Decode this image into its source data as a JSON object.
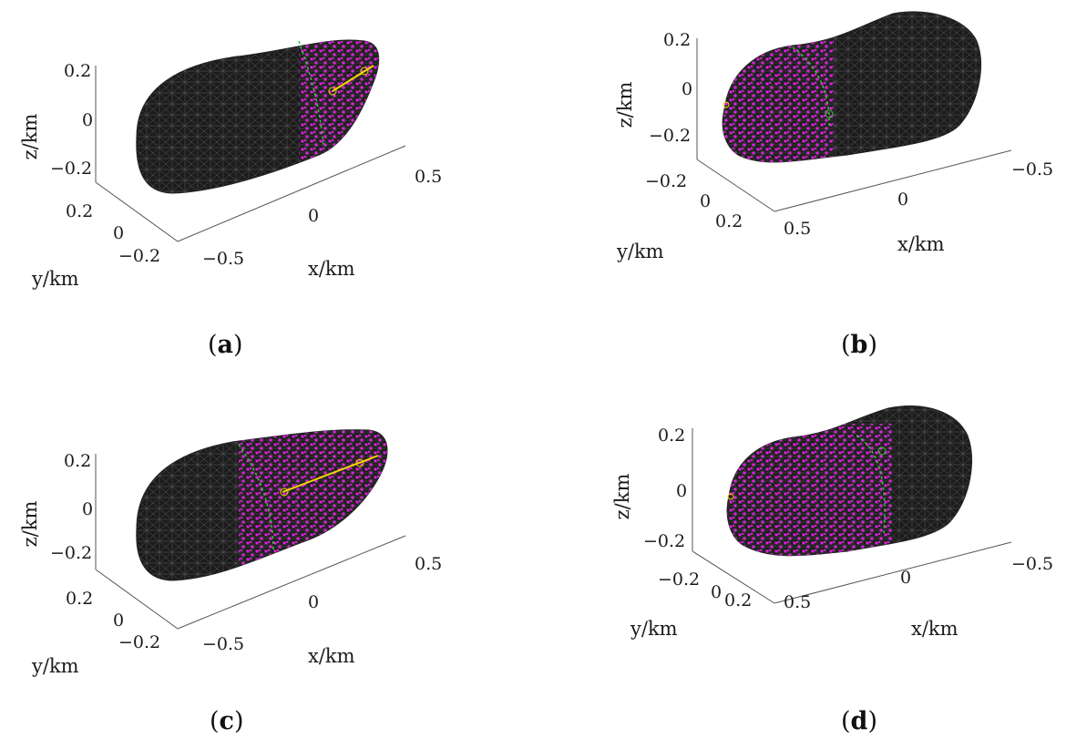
{
  "panels": [
    {
      "id": "a",
      "caption_open": "(",
      "caption_letter": "a",
      "caption_close": ")",
      "z_label": "z/km",
      "y_label": "y/km",
      "x_label": "x/km",
      "z_ticks": [
        "0.2",
        "0",
        "−0.2"
      ],
      "y_ticks": [
        "0.2",
        "0",
        "−0.2"
      ],
      "x_ticks": [
        "−0.5",
        "0",
        "0.5"
      ]
    },
    {
      "id": "b",
      "caption_open": "(",
      "caption_letter": "b",
      "caption_close": ")",
      "z_label": "z/km",
      "y_label": "y/km",
      "x_label": "x/km",
      "z_ticks": [
        "0.2",
        "0",
        "−0.2"
      ],
      "y_ticks": [
        "−0.2",
        "0",
        "0.2"
      ],
      "x_ticks": [
        "0.5",
        "0",
        "−0.5"
      ]
    },
    {
      "id": "c",
      "caption_open": "(",
      "caption_letter": "c",
      "caption_close": ")",
      "z_label": "z/km",
      "y_label": "y/km",
      "x_label": "x/km",
      "z_ticks": [
        "0.2",
        "0",
        "−0.2"
      ],
      "y_ticks": [
        "0.2",
        "0",
        "−0.2"
      ],
      "x_ticks": [
        "−0.5",
        "0",
        "0.5"
      ]
    },
    {
      "id": "d",
      "caption_open": "(",
      "caption_letter": "d",
      "caption_close": ")",
      "z_label": "z/km",
      "y_label": "y/km",
      "x_label": "x/km",
      "z_ticks": [
        "0.2",
        "0",
        "−0.2"
      ],
      "y_ticks": [
        "−0.2",
        "0",
        "0.2"
      ],
      "x_ticks": [
        "0.5",
        "0",
        "−0.5"
      ]
    }
  ],
  "colors": {
    "body_fill": "#1c1c1c",
    "mesh_line": "#6a6a6a",
    "landing_points": "#e020e0",
    "trajectory_green": "#2ecc2e",
    "trajectory_yellow": "#f0d800",
    "axis_line": "#555555"
  }
}
